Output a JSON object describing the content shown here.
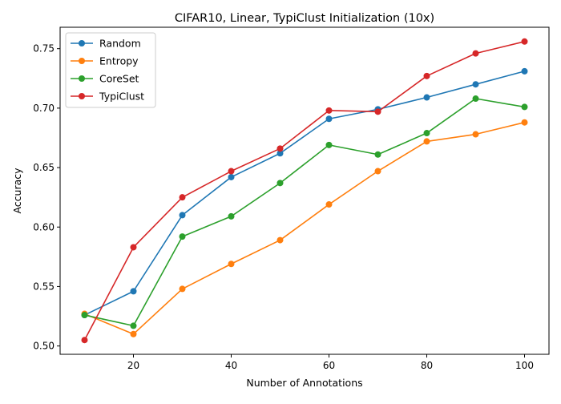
{
  "chart_data": {
    "type": "line",
    "title": "CIFAR10, Linear, TypiClust Initialization (10x)",
    "xlabel": "Number of Annotations",
    "ylabel": "Accuracy",
    "x": [
      10,
      20,
      30,
      40,
      50,
      60,
      70,
      80,
      90,
      100
    ],
    "xlim": [
      5,
      105
    ],
    "ylim": [
      0.493,
      0.768
    ],
    "xticks": [
      20,
      40,
      60,
      80,
      100
    ],
    "yticks": [
      0.5,
      0.55,
      0.6,
      0.65,
      0.7,
      0.75
    ],
    "xtick_labels": [
      "20",
      "40",
      "60",
      "80",
      "100"
    ],
    "ytick_labels": [
      "0.50",
      "0.55",
      "0.60",
      "0.65",
      "0.70",
      "0.75"
    ],
    "grid": false,
    "legend_position": "upper-left",
    "series": [
      {
        "name": "Random",
        "color": "#1f77b4",
        "values": [
          0.526,
          0.546,
          0.61,
          0.642,
          0.662,
          0.691,
          0.699,
          0.709,
          0.72,
          0.731
        ]
      },
      {
        "name": "Entropy",
        "color": "#ff7f0e",
        "values": [
          0.527,
          0.51,
          0.548,
          0.569,
          0.589,
          0.619,
          0.647,
          0.672,
          0.678,
          0.688
        ]
      },
      {
        "name": "CoreSet",
        "color": "#2ca02c",
        "values": [
          0.526,
          0.517,
          0.592,
          0.609,
          0.637,
          0.669,
          0.661,
          0.679,
          0.708,
          0.701
        ]
      },
      {
        "name": "TypiClust",
        "color": "#d62728",
        "values": [
          0.505,
          0.583,
          0.625,
          0.647,
          0.666,
          0.698,
          0.697,
          0.727,
          0.746,
          0.756
        ]
      }
    ]
  }
}
